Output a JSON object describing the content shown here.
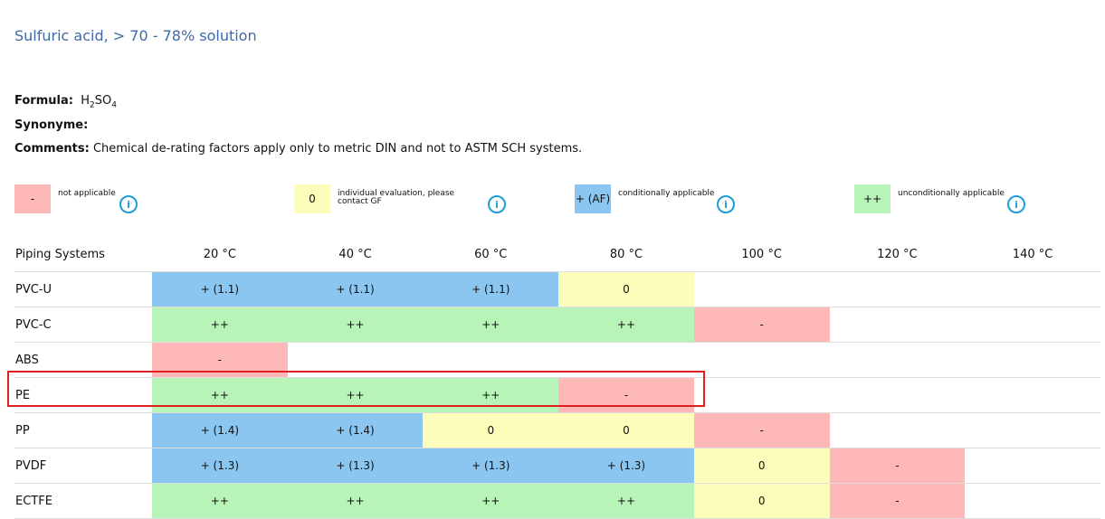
{
  "title": "Sulfuric acid, > 70 - 78% solution",
  "formula": {
    "label": "Formula:",
    "value_prefix": "H",
    "sub1": "2",
    "mid": "SO",
    "sub2": "4"
  },
  "synonyme": {
    "label": "Synonyme:"
  },
  "comments": {
    "label": "Comments:",
    "value": "Chemical de-rating factors apply only to metric DIN and not to ASTM SCH systems."
  },
  "legend": [
    {
      "code": "-",
      "label": "not applicable",
      "color": "#ffb8b8"
    },
    {
      "code": "0",
      "label": "individual evaluation, please contact GF",
      "color": "#fdfdbb"
    },
    {
      "code": "+ (AF)",
      "label": "conditionally applicable",
      "color": "#8ac6ef"
    },
    {
      "code": "++",
      "label": "unconditionally applicable",
      "color": "#b8f4b8"
    }
  ],
  "table": {
    "headers": [
      "Piping Systems",
      "20 °C",
      "40 °C",
      "60 °C",
      "80 °C",
      "100 °C",
      "120 °C",
      "140 °C"
    ],
    "rows": [
      {
        "name": "PVC-U",
        "cells": [
          "+ (1.1)",
          "+ (1.1)",
          "+ (1.1)",
          "0",
          "",
          "",
          ""
        ]
      },
      {
        "name": "PVC-C",
        "cells": [
          "++",
          "++",
          "++",
          "++",
          "-",
          "",
          ""
        ]
      },
      {
        "name": "ABS",
        "cells": [
          "-",
          "",
          "",
          "",
          "",
          "",
          ""
        ]
      },
      {
        "name": "PE",
        "cells": [
          "++",
          "++",
          "++",
          "-",
          "",
          "",
          ""
        ]
      },
      {
        "name": "PP",
        "cells": [
          "+ (1.4)",
          "+ (1.4)",
          "0",
          "0",
          "-",
          "",
          ""
        ]
      },
      {
        "name": "PVDF",
        "cells": [
          "+ (1.3)",
          "+ (1.3)",
          "+ (1.3)",
          "+ (1.3)",
          "0",
          "-",
          ""
        ]
      },
      {
        "name": "ECTFE",
        "cells": [
          "++",
          "++",
          "++",
          "++",
          "0",
          "-",
          ""
        ]
      }
    ]
  },
  "highlighted_row": "PE",
  "info_icon_glyph": "i"
}
